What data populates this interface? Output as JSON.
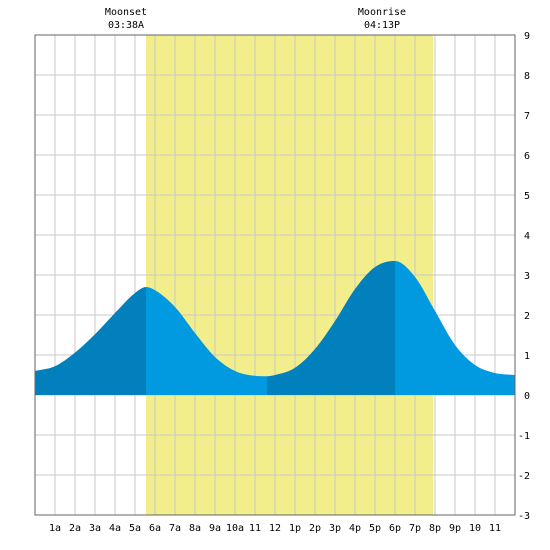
{
  "chart_data": {
    "type": "area",
    "title": "",
    "xlabel": "",
    "ylabel": "",
    "x_tick_labels": [
      "1a",
      "2a",
      "3a",
      "4a",
      "5a",
      "6a",
      "7a",
      "8a",
      "9a",
      "10a",
      "11",
      "12",
      "1p",
      "2p",
      "3p",
      "4p",
      "5p",
      "6p",
      "7p",
      "8p",
      "9p",
      "10",
      "11"
    ],
    "y_ticks": [
      -3,
      -2,
      -1,
      0,
      1,
      2,
      3,
      4,
      5,
      6,
      7,
      8,
      9
    ],
    "ylim": [
      -3,
      9
    ],
    "xlim_hours": [
      0,
      24
    ],
    "daylight_hours": [
      5.55,
      19.9
    ],
    "annotations": [
      {
        "name": "moonset",
        "label": "Moonset",
        "time": "03:38A",
        "hour": 3.63
      },
      {
        "name": "moonrise",
        "label": "Moonrise",
        "time": "04:13P",
        "hour": 16.22
      }
    ],
    "extremes": [
      {
        "type": "high",
        "hour": 5.55,
        "value": 2.7
      },
      {
        "type": "low",
        "hour": 11.6,
        "value": 0.47
      },
      {
        "type": "high",
        "hour": 18.0,
        "value": 3.35
      }
    ],
    "series": [
      {
        "x": [
          0,
          1,
          2,
          3,
          4,
          5,
          5.55,
          6,
          7,
          8,
          9,
          10,
          11,
          11.6,
          12,
          13,
          14,
          15,
          16,
          17,
          18,
          19,
          20,
          21,
          22,
          23,
          24
        ],
        "values": [
          0.6,
          0.72,
          1.06,
          1.52,
          2.05,
          2.55,
          2.7,
          2.62,
          2.2,
          1.55,
          0.95,
          0.6,
          0.48,
          0.47,
          0.5,
          0.68,
          1.15,
          1.85,
          2.65,
          3.2,
          3.35,
          2.95,
          2.1,
          1.25,
          0.75,
          0.55,
          0.5
        ]
      }
    ]
  },
  "colors": {
    "daylight": "#f2ee8c",
    "tide_dark": "#0180bd",
    "tide_light": "#0199df",
    "grid": "#c8c8c8",
    "frame": "#666666",
    "background": "#ffffff"
  }
}
